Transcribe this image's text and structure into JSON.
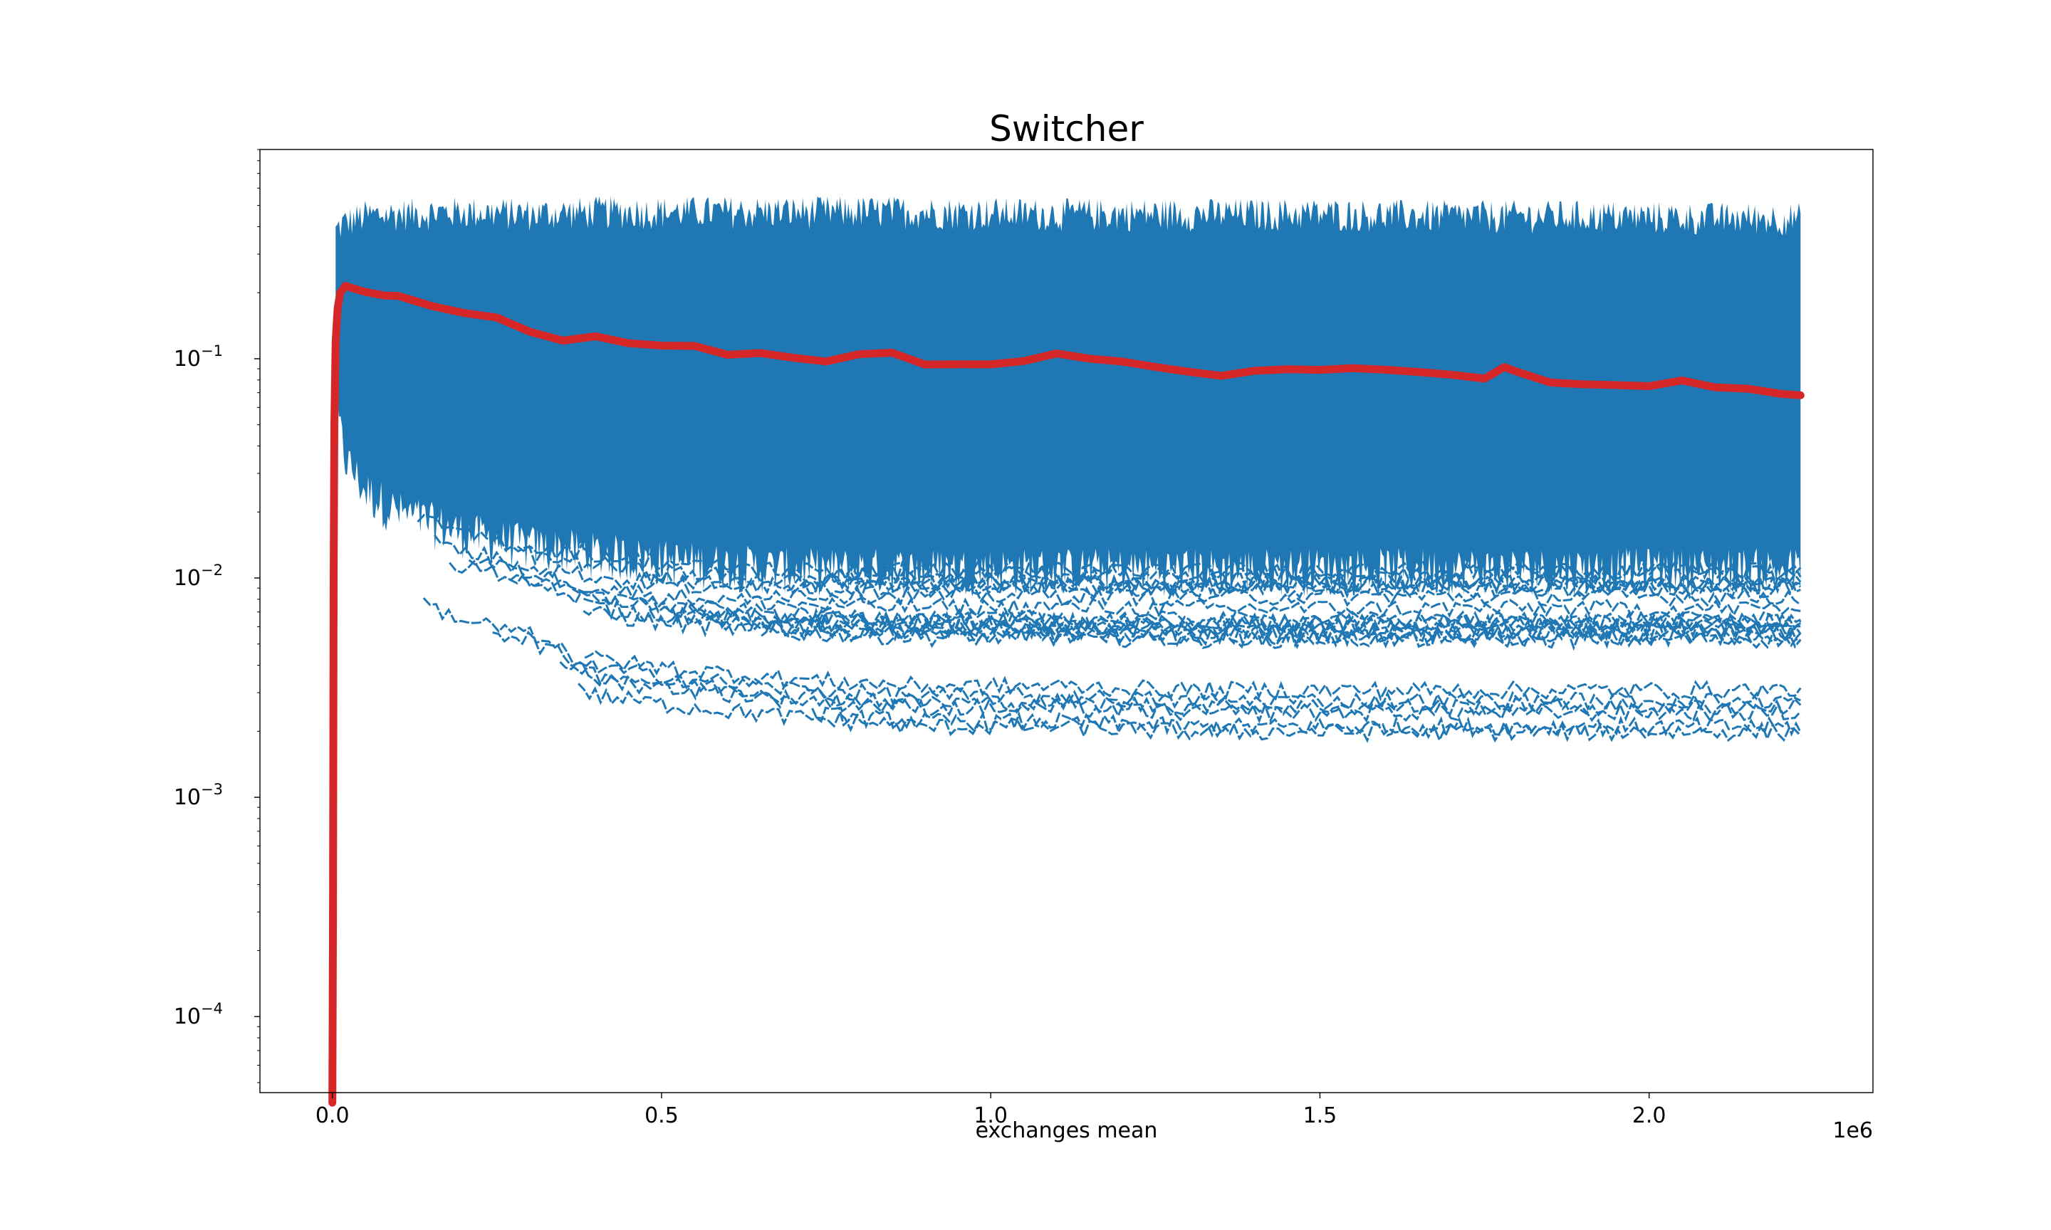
{
  "chart_data": {
    "type": "line",
    "title": "Switcher",
    "xlabel": "exchanges mean",
    "ylabel": "",
    "x_offset_label": "1e6",
    "x_scale": "linear",
    "y_scale": "log",
    "xlim": [
      -110000,
      2340000
    ],
    "ylim": [
      4.5e-05,
      0.9
    ],
    "x_ticks": [
      {
        "value": 0,
        "label": "0.0"
      },
      {
        "value": 500000,
        "label": "0.5"
      },
      {
        "value": 1000000,
        "label": "1.0"
      },
      {
        "value": 1500000,
        "label": "1.5"
      },
      {
        "value": 2000000,
        "label": "2.0"
      }
    ],
    "y_ticks": [
      {
        "value": 0.1,
        "base": "10",
        "exp": "−1"
      },
      {
        "value": 0.01,
        "base": "10",
        "exp": "−2"
      },
      {
        "value": 0.001,
        "base": "10",
        "exp": "−3"
      },
      {
        "value": 0.0001,
        "base": "10",
        "exp": "−4"
      }
    ],
    "grid": false,
    "colors": {
      "band": "#1f77b4",
      "mean": "#d62728"
    },
    "series": [
      {
        "kind": "band",
        "x": [
          5000,
          10000,
          20000,
          50000,
          100000,
          200000,
          300000,
          400000,
          500000,
          700000,
          900000,
          1100000,
          1300000,
          1500000,
          1700000,
          1900000,
          2100000,
          2230000
        ],
        "upper": [
          0.38,
          0.4,
          0.42,
          0.45,
          0.46,
          0.47,
          0.46,
          0.47,
          0.47,
          0.47,
          0.47,
          0.46,
          0.46,
          0.46,
          0.45,
          0.45,
          0.44,
          0.44
        ],
        "dense_lower": [
          0.06,
          0.05,
          0.035,
          0.025,
          0.02,
          0.016,
          0.014,
          0.013,
          0.012,
          0.011,
          0.011,
          0.011,
          0.011,
          0.011,
          0.011,
          0.011,
          0.011,
          0.011
        ],
        "lower": [
          0.08,
          0.04,
          0.02,
          0.009,
          0.006,
          0.0045,
          0.0038,
          0.0024,
          0.0022,
          0.0019,
          0.0017,
          0.0017,
          0.0016,
          0.0016,
          0.0016,
          0.0016,
          0.0016,
          0.0016
        ]
      },
      {
        "kind": "line",
        "x": [
          0,
          1000,
          2000,
          3000,
          5000,
          8000,
          12000,
          20000,
          30000,
          50000,
          80000,
          100000,
          150000,
          200000,
          250000,
          300000,
          350000,
          400000,
          450000,
          500000,
          550000,
          600000,
          650000,
          700000,
          750000,
          800000,
          850000,
          900000,
          950000,
          1000000,
          1050000,
          1100000,
          1150000,
          1200000,
          1250000,
          1300000,
          1350000,
          1400000,
          1450000,
          1500000,
          1550000,
          1600000,
          1650000,
          1700000,
          1750000,
          1780000,
          1800000,
          1850000,
          1900000,
          1950000,
          2000000,
          2050000,
          2100000,
          2150000,
          2200000,
          2230000
        ],
        "y": [
          4e-05,
          0.0003,
          0.01,
          0.05,
          0.12,
          0.17,
          0.2,
          0.215,
          0.21,
          0.2,
          0.19,
          0.19,
          0.17,
          0.165,
          0.15,
          0.13,
          0.12,
          0.125,
          0.12,
          0.118,
          0.113,
          0.107,
          0.105,
          0.1,
          0.1,
          0.105,
          0.105,
          0.095,
          0.092,
          0.092,
          0.1,
          0.105,
          0.1,
          0.1,
          0.09,
          0.088,
          0.085,
          0.088,
          0.088,
          0.088,
          0.088,
          0.088,
          0.087,
          0.083,
          0.08,
          0.093,
          0.088,
          0.077,
          0.078,
          0.078,
          0.075,
          0.078,
          0.076,
          0.074,
          0.07,
          0.07
        ]
      }
    ]
  }
}
